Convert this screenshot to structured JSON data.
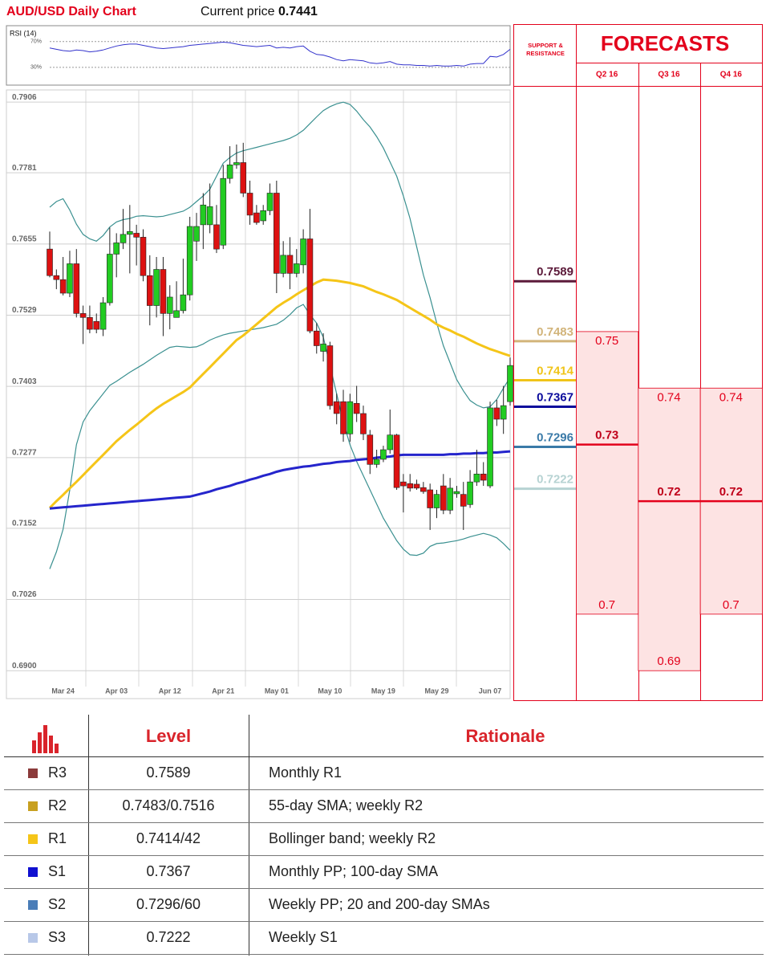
{
  "chart_data": [
    {
      "type": "candlestick",
      "title": "AUD/USD Daily Chart",
      "current_price_label": "Current price",
      "current_price": 0.7441,
      "categories": [
        null,
        null,
        "Mar 24",
        null,
        null,
        null,
        null,
        null,
        null,
        null,
        "Apr 03",
        null,
        null,
        null,
        null,
        null,
        null,
        null,
        "Apr 12",
        null,
        null,
        null,
        null,
        null,
        null,
        null,
        "Apr 21",
        null,
        null,
        null,
        null,
        null,
        null,
        null,
        "May 01",
        null,
        null,
        null,
        null,
        null,
        null,
        null,
        "May 10",
        null,
        null,
        null,
        null,
        null,
        null,
        null,
        "May 19",
        null,
        null,
        null,
        null,
        null,
        null,
        null,
        "May 29",
        null,
        null,
        null,
        null,
        null,
        null,
        null,
        "Jun 07",
        null,
        null,
        null
      ],
      "open": [
        0.7646,
        0.7599,
        0.7592,
        0.7568,
        0.762,
        0.7532,
        0.7525,
        0.7518,
        0.7504,
        0.7551,
        0.7637,
        0.7657,
        0.7672,
        0.7674,
        0.7667,
        0.7599,
        0.7546,
        0.761,
        0.7532,
        0.7525,
        0.7537,
        0.7565,
        0.766,
        0.7689,
        0.7689,
        0.7689,
        0.7653,
        0.7771,
        0.7795,
        0.7799,
        0.7745,
        0.771,
        0.7696,
        0.7714,
        0.7745,
        0.7603,
        0.7635,
        0.7603,
        0.7618,
        0.7664,
        0.7501,
        0.7465,
        0.7475,
        0.7376,
        0.7376,
        0.7319,
        0.7373,
        0.7355,
        0.7317,
        0.7265,
        0.7274,
        0.7291,
        0.7317,
        0.7234,
        0.7231,
        0.723,
        0.7224,
        0.722,
        0.7188,
        0.7227,
        0.7184,
        0.7213,
        0.7212,
        0.7194,
        0.7234,
        0.7248,
        0.7227,
        0.7365,
        0.7345,
        0.7376
      ],
      "high": [
        0.7677,
        0.761,
        0.7632,
        0.7643,
        0.7646,
        0.7546,
        0.7546,
        0.7532,
        0.7561,
        0.7684,
        0.7674,
        0.7717,
        0.7724,
        0.7689,
        0.7681,
        0.7635,
        0.7632,
        0.7632,
        0.7582,
        0.7589,
        0.7629,
        0.7703,
        0.771,
        0.7745,
        0.7762,
        0.7724,
        0.7795,
        0.7828,
        0.7831,
        0.7834,
        0.7767,
        0.7724,
        0.7724,
        0.7762,
        0.7767,
        0.766,
        0.7667,
        0.7646,
        0.7681,
        0.7717,
        0.7515,
        0.7497,
        0.7482,
        0.739,
        0.7397,
        0.739,
        0.7404,
        0.7369,
        0.7326,
        0.7291,
        0.7298,
        0.7362,
        0.7319,
        0.7248,
        0.7248,
        0.7238,
        0.7234,
        0.7231,
        0.722,
        0.7248,
        0.7241,
        0.7227,
        0.7234,
        0.7255,
        0.7291,
        0.7269,
        0.7376,
        0.7379,
        0.7404,
        0.7454
      ],
      "low": [
        0.7596,
        0.7575,
        0.7564,
        0.7561,
        0.7525,
        0.7478,
        0.7497,
        0.7497,
        0.7492,
        0.7546,
        0.7596,
        0.7646,
        0.7603,
        0.7617,
        0.7589,
        0.7511,
        0.7525,
        0.7492,
        0.7504,
        0.7525,
        0.7532,
        0.7555,
        0.7625,
        0.7646,
        0.7674,
        0.7639,
        0.7646,
        0.7762,
        0.7788,
        0.7738,
        0.7689,
        0.7689,
        0.7689,
        0.7706,
        0.7568,
        0.7596,
        0.7575,
        0.7596,
        0.7603,
        0.7497,
        0.7461,
        0.7447,
        0.7362,
        0.7336,
        0.7305,
        0.7305,
        0.734,
        0.7308,
        0.7248,
        0.7259,
        0.7269,
        0.7284,
        0.722,
        0.718,
        0.7217,
        0.722,
        0.7213,
        0.7149,
        0.717,
        0.7177,
        0.7177,
        0.7206,
        0.7149,
        0.7188,
        0.7227,
        0.7227,
        0.7223,
        0.7333,
        0.7319,
        0.7369
      ],
      "close": [
        0.7599,
        0.7592,
        0.7568,
        0.762,
        0.7532,
        0.7525,
        0.7504,
        0.7504,
        0.7551,
        0.7637,
        0.7657,
        0.7672,
        0.7677,
        0.7667,
        0.7599,
        0.7546,
        0.761,
        0.7532,
        0.7561,
        0.7537,
        0.7565,
        0.7686,
        0.7686,
        0.7724,
        0.7721,
        0.7646,
        0.7771,
        0.7795,
        0.7799,
        0.7745,
        0.7706,
        0.7693,
        0.7714,
        0.7745,
        0.7603,
        0.7635,
        0.7603,
        0.762,
        0.7664,
        0.7501,
        0.7475,
        0.7478,
        0.7369,
        0.7355,
        0.7319,
        0.7376,
        0.7355,
        0.7319,
        0.7265,
        0.7274,
        0.7291,
        0.7317,
        0.7224,
        0.7227,
        0.7223,
        0.7223,
        0.7217,
        0.7188,
        0.7212,
        0.7184,
        0.7223,
        0.7217,
        0.7191,
        0.7234,
        0.7248,
        0.7237,
        0.7365,
        0.7345,
        0.7369,
        0.744
      ],
      "up_color": "#22cc22",
      "down_color": "#dd1111",
      "overlays": [
        {
          "color": "#3a9090",
          "values": [
            0.772,
            0.773,
            0.7735,
            0.7715,
            0.769,
            0.7672,
            0.7664,
            0.766,
            0.767,
            0.7685,
            0.7694,
            0.7698,
            0.77,
            0.7704,
            0.7705,
            0.7704,
            0.7703,
            0.7704,
            0.7707,
            0.771,
            0.7713,
            0.772,
            0.773,
            0.774,
            0.7752,
            0.7775,
            0.7798,
            0.7808,
            0.7816,
            0.782,
            0.7823,
            0.7826,
            0.7829,
            0.7832,
            0.7835,
            0.7838,
            0.7842,
            0.7848,
            0.7856,
            0.7868,
            0.788,
            0.7891,
            0.7898,
            0.7903,
            0.7906,
            0.7902,
            0.789,
            0.7875,
            0.7862,
            0.7845,
            0.7825,
            0.78,
            0.7775,
            0.774,
            0.77,
            0.765,
            0.76,
            0.756,
            0.7515,
            0.7475,
            0.7445,
            0.7415,
            0.7395,
            0.7378,
            0.737,
            0.7365,
            0.7367,
            0.738,
            0.74,
            0.7419
          ]
        },
        {
          "color": "#3a9090",
          "values": [
            0.708,
            0.711,
            0.715,
            0.722,
            0.73,
            0.734,
            0.736,
            0.7375,
            0.739,
            0.7405,
            0.7412,
            0.742,
            0.7428,
            0.7435,
            0.7442,
            0.745,
            0.7458,
            0.7465,
            0.7472,
            0.7474,
            0.7473,
            0.7472,
            0.7473,
            0.7478,
            0.7485,
            0.749,
            0.7494,
            0.7497,
            0.7499,
            0.7501,
            0.7503,
            0.7505,
            0.7507,
            0.751,
            0.7513,
            0.752,
            0.753,
            0.7542,
            0.7548,
            0.753,
            0.7515,
            0.749,
            0.744,
            0.739,
            0.734,
            0.73,
            0.727,
            0.7245,
            0.722,
            0.7195,
            0.717,
            0.715,
            0.713,
            0.7115,
            0.7105,
            0.7104,
            0.7108,
            0.712,
            0.7125,
            0.7126,
            0.7128,
            0.713,
            0.7133,
            0.7137,
            0.714,
            0.7143,
            0.714,
            0.7135,
            0.7125,
            0.7113
          ]
        },
        {
          "color": "#f5c518",
          "values": [
            0.7188,
            0.72,
            0.7211,
            0.7223,
            0.7234,
            0.7246,
            0.7258,
            0.727,
            0.7282,
            0.7294,
            0.7306,
            0.7316,
            0.7326,
            0.7335,
            0.7345,
            0.7355,
            0.7364,
            0.7372,
            0.7379,
            0.7386,
            0.7393,
            0.7401,
            0.7413,
            0.7425,
            0.7437,
            0.7449,
            0.7461,
            0.7473,
            0.7485,
            0.7493,
            0.7503,
            0.7513,
            0.7523,
            0.7533,
            0.7543,
            0.7551,
            0.7558,
            0.7566,
            0.7573,
            0.758,
            0.7587,
            0.7592,
            0.7591,
            0.759,
            0.7588,
            0.7586,
            0.7583,
            0.758,
            0.7575,
            0.757,
            0.7566,
            0.7561,
            0.7556,
            0.7549,
            0.7542,
            0.7535,
            0.7528,
            0.7521,
            0.7513,
            0.7507,
            0.7502,
            0.7496,
            0.7491,
            0.7485,
            0.7479,
            0.7474,
            0.7469,
            0.7465,
            0.7461,
            0.7457
          ]
        },
        {
          "color": "#2525cc",
          "values": [
            0.7187,
            0.7188,
            0.7189,
            0.719,
            0.7191,
            0.7192,
            0.7193,
            0.7194,
            0.7195,
            0.7196,
            0.7197,
            0.7198,
            0.7199,
            0.72,
            0.7201,
            0.7202,
            0.7203,
            0.7204,
            0.7205,
            0.7206,
            0.7207,
            0.7208,
            0.7211,
            0.7214,
            0.7217,
            0.7221,
            0.7224,
            0.7227,
            0.7231,
            0.7234,
            0.7238,
            0.7241,
            0.7245,
            0.7248,
            0.7252,
            0.7255,
            0.7257,
            0.7259,
            0.7261,
            0.7262,
            0.7264,
            0.7266,
            0.7267,
            0.7269,
            0.727,
            0.7271,
            0.7273,
            0.7274,
            0.7275,
            0.7277,
            0.7278,
            0.7279,
            0.7281,
            0.7282,
            0.7282,
            0.7282,
            0.7282,
            0.7282,
            0.7282,
            0.7282,
            0.7283,
            0.7283,
            0.7284,
            0.7284,
            0.7285,
            0.7285,
            0.7286,
            0.7286,
            0.7287,
            0.7288
          ]
        }
      ],
      "ylim": [
        0.6879,
        0.7919
      ],
      "yticks": [
        0.7906,
        0.7781,
        0.7655,
        0.7529,
        0.7403,
        0.7277,
        0.7152,
        0.7026,
        {
          "value": 0.69,
          "label": "0.6900"
        }
      ],
      "grid": true
    },
    {
      "type": "line",
      "title": "RSI (14)",
      "color": "#3333cc",
      "values": [
        60,
        58,
        56,
        55,
        57,
        56,
        54,
        55,
        57,
        60,
        63,
        65,
        66,
        66,
        64,
        62,
        60,
        59,
        60,
        61,
        62,
        64,
        65,
        66,
        67,
        68,
        69,
        68,
        66,
        64,
        63,
        62,
        63,
        64,
        60,
        61,
        60,
        62,
        63,
        55,
        50,
        49,
        46,
        42,
        40,
        42,
        41,
        40,
        37,
        36,
        37,
        39,
        35,
        34,
        34,
        33,
        33,
        32,
        33,
        32,
        32,
        33,
        32,
        35,
        36,
        36,
        47,
        46,
        50,
        58
      ],
      "ylim": [
        10,
        87
      ],
      "yticks": [
        {
          "value": 70,
          "label": "70%"
        },
        {
          "value": 30,
          "label": "30%"
        }
      ]
    }
  ],
  "forecasts": {
    "title": "FORECASTS",
    "header": "SUPPORT & RESISTANCE",
    "levels": [
      {
        "value": 0.7589,
        "color": "#5c1a3a"
      },
      {
        "value": 0.7483,
        "color": "#d2b47a"
      },
      {
        "value": 0.7414,
        "color": "#f0c419"
      },
      {
        "value": 0.7367,
        "color": "#0b0b9c"
      },
      {
        "value": 0.7296,
        "color": "#3a7aa8"
      },
      {
        "value": 0.7222,
        "color": "#b7d3d3"
      }
    ],
    "columns": [
      {
        "name": "Q2 16",
        "high": 0.75,
        "mid": 0.73,
        "low": 0.7
      },
      {
        "name": "Q3 16",
        "high": 0.74,
        "mid": 0.72,
        "low": 0.69
      },
      {
        "name": "Q4 16",
        "high": 0.74,
        "mid": 0.72,
        "low": 0.7
      }
    ]
  },
  "table": {
    "header": [
      "Level",
      "Rationale"
    ],
    "rows": [
      {
        "label": "R3",
        "color": "#8b3a3a",
        "level": "0.7589",
        "rationale": "Monthly R1"
      },
      {
        "label": "R2",
        "color": "#c8a020",
        "level": "0.7483/0.7516",
        "rationale": "55-day SMA; weekly R2"
      },
      {
        "label": "R1",
        "color": "#f5c518",
        "level": "0.7414/42",
        "rationale": "Bollinger band; weekly R2"
      },
      {
        "label": "S1",
        "color": "#1010d0",
        "level": "0.7367",
        "rationale": "Monthly PP; 100-day SMA"
      },
      {
        "label": "S2",
        "color": "#4a7db8",
        "level": "0.7296/60",
        "rationale": "Weekly PP; 20 and 200-day SMAs"
      },
      {
        "label": "S3",
        "color": "#b8c8e8",
        "level": "0.7222",
        "rationale": "Weekly S1"
      }
    ]
  }
}
